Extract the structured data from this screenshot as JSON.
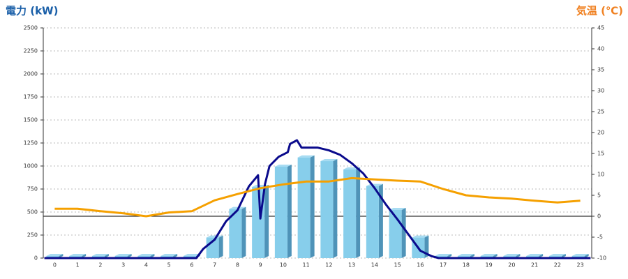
{
  "chart_data": {
    "type": "bar",
    "ylabel": "電力 (kW)",
    "y2label": "気温 (℃)",
    "ylabel_color": "#1a5fa8",
    "y2label_color": "#f08020",
    "categories": [
      "0",
      "1",
      "2",
      "3",
      "4",
      "5",
      "6",
      "7",
      "8",
      "9",
      "10",
      "11",
      "12",
      "13",
      "14",
      "15",
      "16",
      "17",
      "18",
      "19",
      "20",
      "21",
      "22",
      "23"
    ],
    "ylim": [
      0,
      2500
    ],
    "yticks": [
      0,
      250,
      500,
      750,
      1000,
      1250,
      1500,
      1750,
      2000,
      2250,
      2500
    ],
    "y2lim": [
      -10,
      45
    ],
    "y2ticks": [
      -10,
      -5,
      0,
      5,
      10,
      15,
      20,
      25,
      30,
      35,
      40,
      45
    ],
    "grid": true,
    "series": [
      {
        "type": "bar",
        "color": "#87ceeb",
        "values": [
          0,
          0,
          0,
          0,
          0,
          0,
          0,
          200,
          510,
          750,
          970,
          1070,
          1030,
          940,
          760,
          500,
          200,
          0,
          0,
          0,
          0,
          0,
          0,
          0
        ]
      },
      {
        "type": "line",
        "color": "#0a0a8c",
        "x": [
          -0.45,
          6.2,
          6.5,
          7,
          7.5,
          8,
          8.5,
          8.9,
          9.0,
          9.2,
          9.4,
          9.8,
          10.2,
          10.3,
          10.6,
          10.8,
          11.5,
          12,
          12.5,
          13,
          13.5,
          14,
          14.5,
          15,
          15.5,
          16,
          16.5,
          16.8,
          23.45
        ],
        "values": [
          0,
          0,
          100,
          200,
          400,
          520,
          780,
          900,
          430,
          800,
          1000,
          1100,
          1150,
          1240,
          1280,
          1200,
          1200,
          1170,
          1120,
          1030,
          920,
          760,
          580,
          420,
          250,
          80,
          20,
          0,
          0
        ]
      },
      {
        "type": "line",
        "color": "#f5a000",
        "axis": "y2",
        "values": [
          1.8,
          1.8,
          1.2,
          0.7,
          0,
          0.9,
          1.2,
          3.8,
          5.3,
          6.7,
          7.6,
          8.3,
          8.3,
          9.1,
          8.8,
          8.5,
          8.3,
          6.5,
          5,
          4.5,
          4.2,
          3.7,
          3.3,
          3.7
        ]
      }
    ]
  }
}
